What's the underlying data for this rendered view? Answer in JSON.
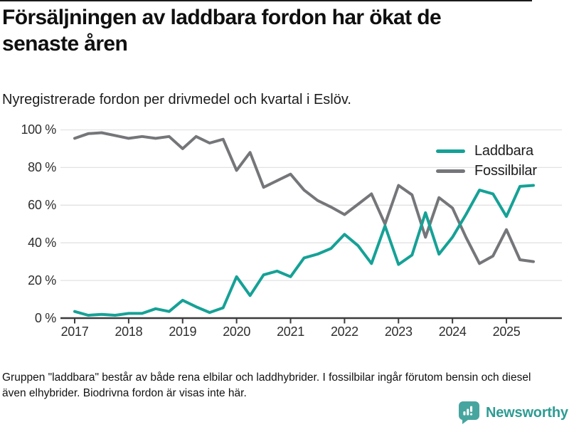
{
  "header": {
    "title": "Försäljningen av laddbara fordon har ökat de senaste åren",
    "subtitle": "Nyregistrerade fordon per drivmedel och kvartal i Eslöv."
  },
  "footer": {
    "note": "Gruppen \"laddbara\" består av både rena elbilar och laddhybrider. I fossilbilar ingår förutom bensin och diesel även elhybrider. Biodrivna fordon är visas inte här.",
    "brand": "Newsworthy"
  },
  "colors": {
    "laddbara": "#16a196",
    "fossilbilar": "#757679",
    "axis": "#3b3b3d",
    "grid": "#e2e2e2",
    "brand_icon": "#47a59f",
    "brand_text": "#2d9c93"
  },
  "chart_data": {
    "type": "line",
    "title": "Försäljningen av laddbara fordon har ökat de senaste åren",
    "subtitle": "Nyregistrerade fordon per drivmedel och kvartal i Eslöv.",
    "grid": true,
    "legend_position": "top-right",
    "ylim": [
      0,
      100
    ],
    "y_axis": {
      "ticks": [
        0,
        20,
        40,
        60,
        80,
        100
      ],
      "labels": [
        "0 %",
        "20 %",
        "40 %",
        "60 %",
        "80 %",
        "100 %"
      ]
    },
    "x_axis": {
      "labels": [
        "2017",
        "2018",
        "2019",
        "2020",
        "2021",
        "2022",
        "2023",
        "2024",
        "2025"
      ]
    },
    "categories": [
      "2017 Q1",
      "2017 Q2",
      "2017 Q3",
      "2017 Q4",
      "2018 Q1",
      "2018 Q2",
      "2018 Q3",
      "2018 Q4",
      "2019 Q1",
      "2019 Q2",
      "2019 Q3",
      "2019 Q4",
      "2020 Q1",
      "2020 Q2",
      "2020 Q3",
      "2020 Q4",
      "2021 Q1",
      "2021 Q2",
      "2021 Q3",
      "2021 Q4",
      "2022 Q1",
      "2022 Q2",
      "2022 Q3",
      "2022 Q4",
      "2023 Q1",
      "2023 Q2",
      "2023 Q3",
      "2023 Q4",
      "2024 Q1",
      "2024 Q2",
      "2024 Q3",
      "2024 Q4",
      "2025 Q1",
      "2025 Q2",
      "2025 Q3"
    ],
    "unit": "%",
    "series": [
      {
        "name": "Laddbara",
        "color": "#16a196",
        "values": [
          3.5,
          1.5,
          2,
          1.5,
          2.5,
          2.5,
          5,
          3.5,
          9.5,
          6,
          3,
          5.5,
          22,
          12,
          23,
          25,
          22,
          32,
          34,
          37,
          44.5,
          38.5,
          29,
          49,
          28.5,
          33.5,
          56,
          34,
          43,
          55,
          68,
          66,
          54,
          70,
          70.5
        ]
      },
      {
        "name": "Fossilbilar",
        "color": "#757679",
        "values": [
          95.5,
          98,
          98.5,
          97,
          95.5,
          96.5,
          95.5,
          96.5,
          90,
          96.5,
          93,
          95,
          78.5,
          88,
          69.5,
          73,
          76.5,
          68,
          62.5,
          59,
          55,
          60.5,
          66,
          50,
          70.5,
          65.5,
          43,
          64,
          58.5,
          43,
          29,
          33,
          47,
          31,
          30
        ]
      }
    ]
  }
}
